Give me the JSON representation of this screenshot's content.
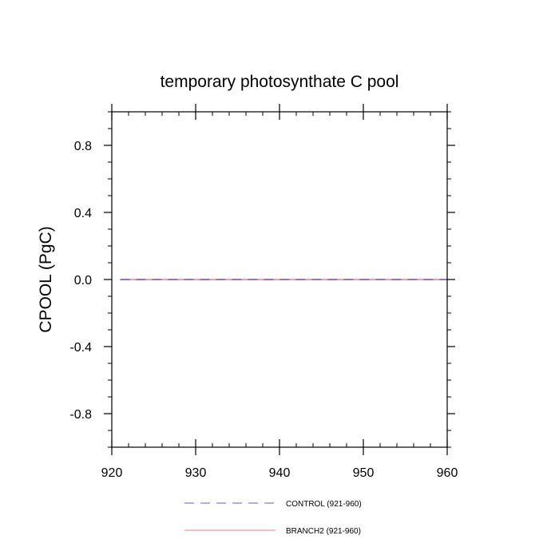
{
  "chart_data": {
    "type": "line",
    "title": "temporary photosynthate C pool",
    "xlabel": "",
    "ylabel": "CPOOL  (PgC)",
    "xlim": [
      920,
      960
    ],
    "ylim": [
      -1.0,
      1.0
    ],
    "x_ticks": [
      920,
      930,
      940,
      950,
      960
    ],
    "x_tick_labels": [
      "920",
      "930",
      "940",
      "950",
      "960"
    ],
    "y_ticks": [
      0.8,
      0.4,
      0.0,
      -0.4,
      -0.8
    ],
    "y_tick_labels": [
      "0.8",
      "0.4",
      "0.0",
      "-0.4",
      "-0.8"
    ],
    "x_minor_step": 2,
    "y_minor_step": 0.1,
    "grid": false,
    "legend_position": "bottom",
    "series": [
      {
        "name": "CONTROL (921-960)",
        "color": "#6a5acd",
        "style": "dashed",
        "x": [
          921,
          960
        ],
        "y": [
          0.0,
          0.0
        ]
      },
      {
        "name": "BRANCH2 (921-960)",
        "color": "#f08080",
        "style": "solid",
        "x": [
          921,
          960
        ],
        "y": [
          0.0,
          0.0
        ]
      }
    ]
  }
}
